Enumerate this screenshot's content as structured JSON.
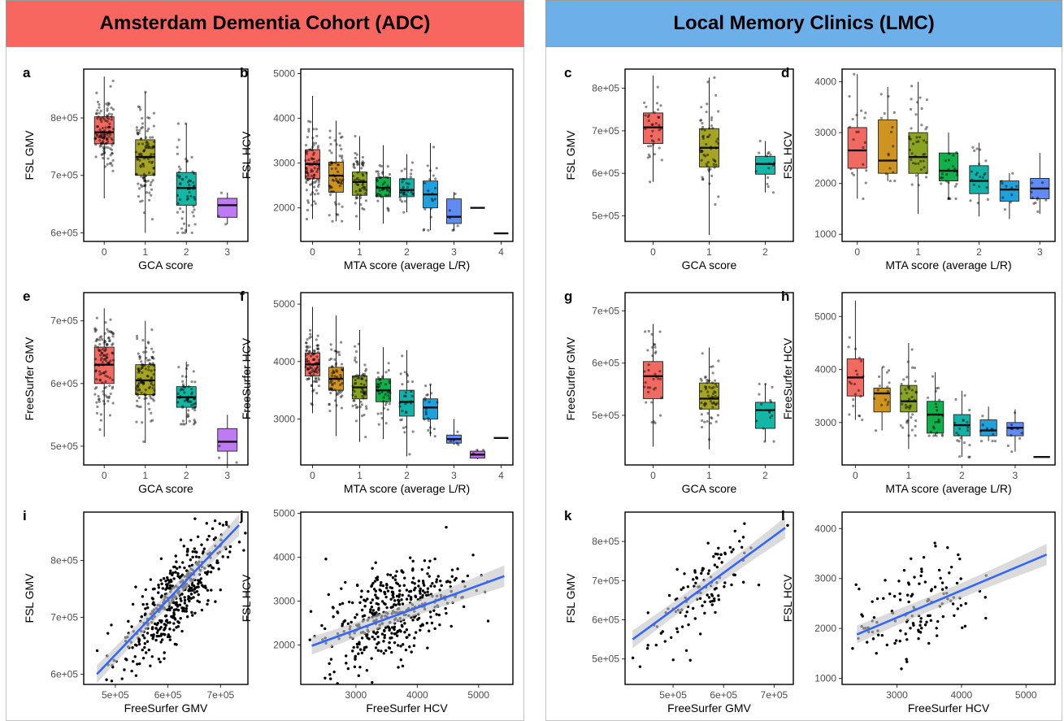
{
  "headers": {
    "adc": {
      "title": "Amsterdam Dementia Cohort (ADC)",
      "color": "#f8675f"
    },
    "lmc": {
      "title": "Local Memory Clinics (LMC)",
      "color": "#6db0e9"
    }
  },
  "colors": {
    "box_fill": [
      "#f16a62",
      "#a5a424",
      "#12b7a5",
      "#bd7af2"
    ],
    "mta_fill": [
      "#f16a62",
      "#cf9320",
      "#8ba323",
      "#10b04a",
      "#13b2a8",
      "#1ea1dc",
      "#5f8bf2",
      "#bf6cf0",
      "#ef67c1"
    ],
    "regression_line": "#3366ff",
    "ci_band": "#c8c8c8"
  },
  "chart_data": [
    {
      "label": "a",
      "type": "box",
      "group": "adc",
      "xlabel": "GCA score",
      "ylabel": "FSL GMV",
      "categories": [
        "0",
        "1",
        "2",
        "3"
      ],
      "tick_labels": [
        "0",
        "1",
        "2",
        "3"
      ],
      "yticks": [
        "6e+05",
        "7e+05",
        "8e+05"
      ],
      "ytick_values": [
        600000,
        700000,
        800000
      ],
      "ylim": [
        585000,
        885000
      ],
      "boxes": [
        {
          "x": 0,
          "q1": 755000,
          "median": 775000,
          "q3": 802000,
          "lo": 660000,
          "hi": 872000,
          "n": 120
        },
        {
          "x": 1,
          "q1": 700000,
          "median": 732000,
          "q3": 762000,
          "lo": 600000,
          "hi": 845000,
          "n": 110
        },
        {
          "x": 2,
          "q1": 648000,
          "median": 678000,
          "q3": 705000,
          "lo": 600000,
          "hi": 790000,
          "n": 60
        },
        {
          "x": 3,
          "q1": 627000,
          "median": 648000,
          "q3": 660000,
          "lo": 615000,
          "hi": 670000,
          "n": 3
        }
      ]
    },
    {
      "label": "b",
      "type": "box",
      "group": "adc",
      "xlabel": "MTA score (average L/R)",
      "ylabel": "FSL HCV",
      "categories": [
        "0",
        "0.5",
        "1",
        "1.5",
        "2",
        "2.5",
        "3",
        "3.5",
        "4"
      ],
      "tick_labels": [
        "0",
        "1",
        "2",
        "3",
        "4"
      ],
      "yticks": [
        "2000",
        "3000",
        "4000",
        "5000"
      ],
      "ytick_values": [
        2000,
        3000,
        4000,
        5000
      ],
      "ylim": [
        1250,
        5100
      ],
      "boxes": [
        {
          "x": 0,
          "q1": 2650,
          "median": 2980,
          "q3": 3300,
          "lo": 1750,
          "hi": 4500,
          "n": 90
        },
        {
          "x": 0.5,
          "q1": 2350,
          "median": 2720,
          "q3": 3020,
          "lo": 1700,
          "hi": 3950,
          "n": 60
        },
        {
          "x": 1,
          "q1": 2280,
          "median": 2580,
          "q3": 2800,
          "lo": 1500,
          "hi": 3600,
          "n": 60
        },
        {
          "x": 1.5,
          "q1": 2250,
          "median": 2450,
          "q3": 2680,
          "lo": 1650,
          "hi": 3400,
          "n": 40
        },
        {
          "x": 2,
          "q1": 2250,
          "median": 2400,
          "q3": 2650,
          "lo": 1900,
          "hi": 3200,
          "n": 30
        },
        {
          "x": 2.5,
          "q1": 2000,
          "median": 2300,
          "q3": 2600,
          "lo": 1500,
          "hi": 3450,
          "n": 20
        },
        {
          "x": 3,
          "q1": 1650,
          "median": 1800,
          "q3": 2200,
          "lo": 1500,
          "hi": 2350,
          "n": 6
        },
        {
          "x": 3.5,
          "q1": 2000,
          "median": 2000,
          "q3": 2000,
          "lo": 2000,
          "hi": 2000,
          "n": 0
        },
        {
          "x": 4,
          "q1": 1430,
          "median": 1430,
          "q3": 1430,
          "lo": 1430,
          "hi": 1430,
          "n": 0
        }
      ]
    },
    {
      "label": "c",
      "type": "box",
      "group": "lmc",
      "xlabel": "GCA score",
      "ylabel": "FSL GMV",
      "categories": [
        "0",
        "1",
        "2"
      ],
      "tick_labels": [
        "0",
        "1",
        "2"
      ],
      "yticks": [
        "5e+05",
        "6e+05",
        "7e+05",
        "8e+05"
      ],
      "ytick_values": [
        500000,
        600000,
        700000,
        800000
      ],
      "ylim": [
        440000,
        845000
      ],
      "boxes": [
        {
          "x": 0,
          "q1": 670000,
          "median": 708000,
          "q3": 742000,
          "lo": 580000,
          "hi": 830000,
          "n": 35
        },
        {
          "x": 1,
          "q1": 615000,
          "median": 660000,
          "q3": 705000,
          "lo": 455000,
          "hi": 825000,
          "n": 60
        },
        {
          "x": 2,
          "q1": 598000,
          "median": 622000,
          "q3": 640000,
          "lo": 555000,
          "hi": 676000,
          "n": 15
        }
      ]
    },
    {
      "label": "d",
      "type": "box",
      "group": "lmc",
      "xlabel": "MTA score (average L/R)",
      "ylabel": "FSL HCV",
      "categories": [
        "0",
        "0.5",
        "1",
        "1.5",
        "2",
        "2.5",
        "3"
      ],
      "tick_labels": [
        "0",
        "1",
        "2",
        "3"
      ],
      "yticks": [
        "1000",
        "2000",
        "3000",
        "4000"
      ],
      "ytick_values": [
        1000,
        2000,
        3000,
        4000
      ],
      "ylim": [
        860,
        4250
      ],
      "boxes": [
        {
          "x": 0,
          "q1": 2300,
          "median": 2650,
          "q3": 3100,
          "lo": 1700,
          "hi": 4150,
          "n": 20
        },
        {
          "x": 0.5,
          "q1": 2200,
          "median": 2450,
          "q3": 3250,
          "lo": 2050,
          "hi": 3900,
          "n": 15
        },
        {
          "x": 1,
          "q1": 2200,
          "median": 2520,
          "q3": 3000,
          "lo": 1400,
          "hi": 4000,
          "n": 40
        },
        {
          "x": 1.5,
          "q1": 2050,
          "median": 2250,
          "q3": 2600,
          "lo": 1700,
          "hi": 3000,
          "n": 25
        },
        {
          "x": 2,
          "q1": 1800,
          "median": 2050,
          "q3": 2350,
          "lo": 1350,
          "hi": 2800,
          "n": 20
        },
        {
          "x": 2.5,
          "q1": 1650,
          "median": 1880,
          "q3": 2050,
          "lo": 1300,
          "hi": 2200,
          "n": 10
        },
        {
          "x": 3,
          "q1": 1700,
          "median": 1900,
          "q3": 2100,
          "lo": 1400,
          "hi": 2600,
          "n": 10
        }
      ]
    },
    {
      "label": "e",
      "type": "box",
      "group": "adc",
      "xlabel": "GCA score",
      "ylabel": "FreeSurfer GMV",
      "categories": [
        "0",
        "1",
        "2",
        "3"
      ],
      "tick_labels": [
        "0",
        "1",
        "2",
        "3"
      ],
      "yticks": [
        "5e+05",
        "6e+05",
        "7e+05"
      ],
      "ytick_values": [
        500000,
        600000,
        700000
      ],
      "ylim": [
        470000,
        745000
      ],
      "boxes": [
        {
          "x": 0,
          "q1": 600000,
          "median": 630000,
          "q3": 658000,
          "lo": 515000,
          "hi": 720000,
          "n": 120
        },
        {
          "x": 1,
          "q1": 582000,
          "median": 605000,
          "q3": 630000,
          "lo": 505000,
          "hi": 700000,
          "n": 110
        },
        {
          "x": 2,
          "q1": 562000,
          "median": 578000,
          "q3": 595000,
          "lo": 535000,
          "hi": 635000,
          "n": 60
        },
        {
          "x": 3,
          "q1": 492000,
          "median": 507000,
          "q3": 528000,
          "lo": 470000,
          "hi": 550000,
          "n": 3
        }
      ]
    },
    {
      "label": "f",
      "type": "box",
      "group": "adc",
      "xlabel": "MTA score (average L/R)",
      "ylabel": "FreeSurfer HCV",
      "categories": [
        "0",
        "0.5",
        "1",
        "1.5",
        "2",
        "2.5",
        "3",
        "3.5",
        "4"
      ],
      "tick_labels": [
        "0",
        "1",
        "2",
        "3",
        "4"
      ],
      "yticks": [
        "3000",
        "4000",
        "5000"
      ],
      "ytick_values": [
        3000,
        4000,
        5000
      ],
      "ylim": [
        2200,
        5200
      ],
      "boxes": [
        {
          "x": 0,
          "q1": 3750,
          "median": 3950,
          "q3": 4150,
          "lo": 3100,
          "hi": 4950,
          "n": 90
        },
        {
          "x": 0.5,
          "q1": 3500,
          "median": 3700,
          "q3": 3900,
          "lo": 2700,
          "hi": 4800,
          "n": 60
        },
        {
          "x": 1,
          "q1": 3350,
          "median": 3550,
          "q3": 3750,
          "lo": 2600,
          "hi": 4550,
          "n": 60
        },
        {
          "x": 1.5,
          "q1": 3300,
          "median": 3500,
          "q3": 3700,
          "lo": 2650,
          "hi": 4250,
          "n": 40
        },
        {
          "x": 2,
          "q1": 3050,
          "median": 3300,
          "q3": 3500,
          "lo": 2350,
          "hi": 4200,
          "n": 30
        },
        {
          "x": 2.5,
          "q1": 3000,
          "median": 3200,
          "q3": 3350,
          "lo": 2700,
          "hi": 3600,
          "n": 20
        },
        {
          "x": 3,
          "q1": 2580,
          "median": 2650,
          "q3": 2720,
          "lo": 2550,
          "hi": 3000,
          "n": 5
        },
        {
          "x": 3.5,
          "q1": 2320,
          "median": 2380,
          "q3": 2440,
          "lo": 2300,
          "hi": 2460,
          "n": 3
        },
        {
          "x": 4,
          "q1": 2670,
          "median": 2670,
          "q3": 2670,
          "lo": 2670,
          "hi": 2670,
          "n": 0
        }
      ]
    },
    {
      "label": "g",
      "type": "box",
      "group": "lmc",
      "xlabel": "GCA score",
      "ylabel": "FreeSurfer GMV",
      "categories": [
        "0",
        "1",
        "2"
      ],
      "tick_labels": [
        "0",
        "1",
        "2"
      ],
      "yticks": [
        "5e+05",
        "6e+05",
        "7e+05"
      ],
      "ytick_values": [
        500000,
        600000,
        700000
      ],
      "ylim": [
        405000,
        735000
      ],
      "boxes": [
        {
          "x": 0,
          "q1": 532000,
          "median": 575000,
          "q3": 603000,
          "lo": 440000,
          "hi": 675000,
          "n": 35
        },
        {
          "x": 1,
          "q1": 512000,
          "median": 532000,
          "q3": 562000,
          "lo": 435000,
          "hi": 630000,
          "n": 60
        },
        {
          "x": 2,
          "q1": 475000,
          "median": 510000,
          "q3": 525000,
          "lo": 450000,
          "hi": 560000,
          "n": 15
        }
      ]
    },
    {
      "label": "h",
      "type": "box",
      "group": "lmc",
      "xlabel": "MTA score (average L/R)",
      "ylabel": "FreeSurfer HCV",
      "categories": [
        "0",
        "0.5",
        "1",
        "1.5",
        "2",
        "2.5",
        "3",
        "3.5"
      ],
      "tick_labels": [
        "0",
        "1",
        "2",
        "3"
      ],
      "yticks": [
        "3000",
        "4000",
        "5000"
      ],
      "ytick_values": [
        3000,
        4000,
        5000
      ],
      "ylim": [
        2200,
        5450
      ],
      "boxes": [
        {
          "x": 0,
          "q1": 3500,
          "median": 3850,
          "q3": 4200,
          "lo": 3050,
          "hi": 5300,
          "n": 20
        },
        {
          "x": 0.5,
          "q1": 3200,
          "median": 3550,
          "q3": 3650,
          "lo": 2850,
          "hi": 4050,
          "n": 15
        },
        {
          "x": 1,
          "q1": 3200,
          "median": 3400,
          "q3": 3700,
          "lo": 2500,
          "hi": 4500,
          "n": 40
        },
        {
          "x": 1.5,
          "q1": 2800,
          "median": 3150,
          "q3": 3400,
          "lo": 2750,
          "hi": 3950,
          "n": 25
        },
        {
          "x": 2,
          "q1": 2750,
          "median": 2950,
          "q3": 3150,
          "lo": 2350,
          "hi": 3600,
          "n": 20
        },
        {
          "x": 2.5,
          "q1": 2750,
          "median": 2850,
          "q3": 3050,
          "lo": 2650,
          "hi": 3300,
          "n": 10
        },
        {
          "x": 3,
          "q1": 2750,
          "median": 2900,
          "q3": 3000,
          "lo": 2450,
          "hi": 3250,
          "n": 10
        },
        {
          "x": 3.5,
          "q1": 2350,
          "median": 2350,
          "q3": 2350,
          "lo": 2350,
          "hi": 2350,
          "n": 0
        }
      ]
    },
    {
      "label": "i",
      "type": "scatter",
      "group": "adc",
      "xlabel": "FreeSurfer GMV",
      "ylabel": "FSL GMV",
      "xticks": [
        "5e+05",
        "6e+05",
        "7e+05"
      ],
      "xtick_values": [
        500000,
        600000,
        700000
      ],
      "xlim": [
        440000,
        752000
      ],
      "yticks": [
        "6e+05",
        "7e+05",
        "8e+05"
      ],
      "ytick_values": [
        600000,
        700000,
        800000
      ],
      "ylim": [
        582000,
        885000
      ],
      "n": 450,
      "xmean": 610000,
      "xsd": 48000,
      "slope": 0.96,
      "ymean": 730000,
      "noise": 36000,
      "fit": {
        "x0": 465000,
        "y0": 600000,
        "x1": 735000,
        "y1": 862000
      }
    },
    {
      "label": "j",
      "type": "scatter",
      "group": "adc",
      "xlabel": "FreeSurfer HCV",
      "ylabel": "FSL HCV",
      "xticks": [
        "3000",
        "4000",
        "5000"
      ],
      "xtick_values": [
        3000,
        4000,
        5000
      ],
      "xlim": [
        2100,
        5560
      ],
      "yticks": [
        "2000",
        "3000",
        "4000",
        "5000"
      ],
      "ytick_values": [
        2000,
        3000,
        4000,
        5000
      ],
      "ylim": [
        1100,
        5030
      ],
      "n": 450,
      "xmean": 3600,
      "xsd": 550,
      "slope": 0.52,
      "ymean": 2750,
      "noise": 520,
      "fit": {
        "x0": 2280,
        "y0": 1980,
        "x1": 5420,
        "y1": 3570
      }
    },
    {
      "label": "k",
      "type": "scatter",
      "group": "lmc",
      "xlabel": "FreeSurfer GMV",
      "ylabel": "FSL GMV",
      "xticks": [
        "5e+05",
        "6e+05",
        "7e+05"
      ],
      "xtick_values": [
        500000,
        600000,
        700000
      ],
      "xlim": [
        405000,
        738000
      ],
      "yticks": [
        "5e+05",
        "6e+05",
        "7e+05",
        "8e+05"
      ],
      "ytick_values": [
        500000,
        600000,
        700000,
        800000
      ],
      "ylim": [
        435000,
        875000
      ],
      "n": 120,
      "xmean": 545000,
      "xsd": 55000,
      "slope": 0.95,
      "ymean": 665000,
      "noise": 52000,
      "fit": {
        "x0": 420000,
        "y0": 550000,
        "x1": 722000,
        "y1": 835000
      }
    },
    {
      "label": "l",
      "type": "scatter",
      "group": "lmc",
      "xlabel": "FreeSurfer HCV",
      "ylabel": "FSL HCV",
      "xticks": [
        "3000",
        "4000",
        "5000"
      ],
      "xtick_values": [
        3000,
        4000,
        5000
      ],
      "xlim": [
        2150,
        5450
      ],
      "yticks": [
        "1000",
        "2000",
        "3000",
        "4000"
      ],
      "ytick_values": [
        1000,
        2000,
        3000,
        4000
      ],
      "ylim": [
        880,
        4330
      ],
      "n": 130,
      "xmean": 3300,
      "xsd": 450,
      "slope": 0.55,
      "ymean": 2400,
      "noise": 480,
      "fit": {
        "x0": 2380,
        "y0": 1880,
        "x1": 5320,
        "y1": 3480
      }
    }
  ]
}
